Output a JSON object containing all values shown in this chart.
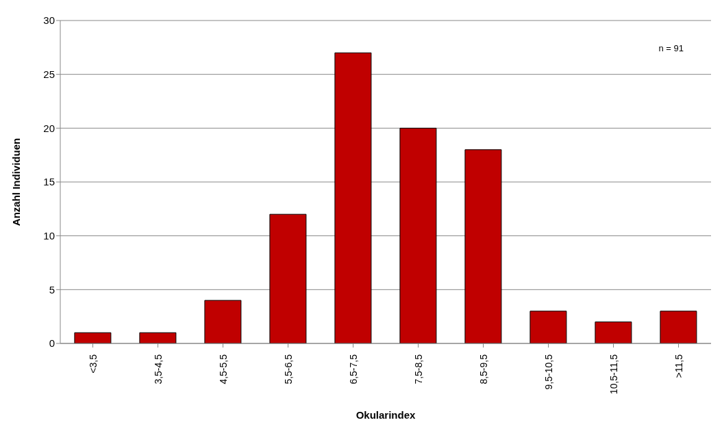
{
  "chart_data": {
    "type": "bar",
    "xlabel": "Okularindex",
    "ylabel": "Anzahl Individuen",
    "categories": [
      "<3,5",
      "3,5-4,5",
      "4,5-5,5",
      "5,5-6,5",
      "6,5-7,5",
      "7,5-8,5",
      "8,5-9,5",
      "9,5-10,5",
      "10,5-11,5",
      ">11,5"
    ],
    "values": [
      1,
      1,
      4,
      12,
      27,
      20,
      18,
      3,
      2,
      3
    ],
    "color": "#c00000",
    "ylim": [
      0,
      30
    ],
    "yticks": [
      0,
      5,
      10,
      15,
      20,
      25,
      30
    ],
    "grid": "y",
    "annotations": [
      "n = 91"
    ]
  }
}
